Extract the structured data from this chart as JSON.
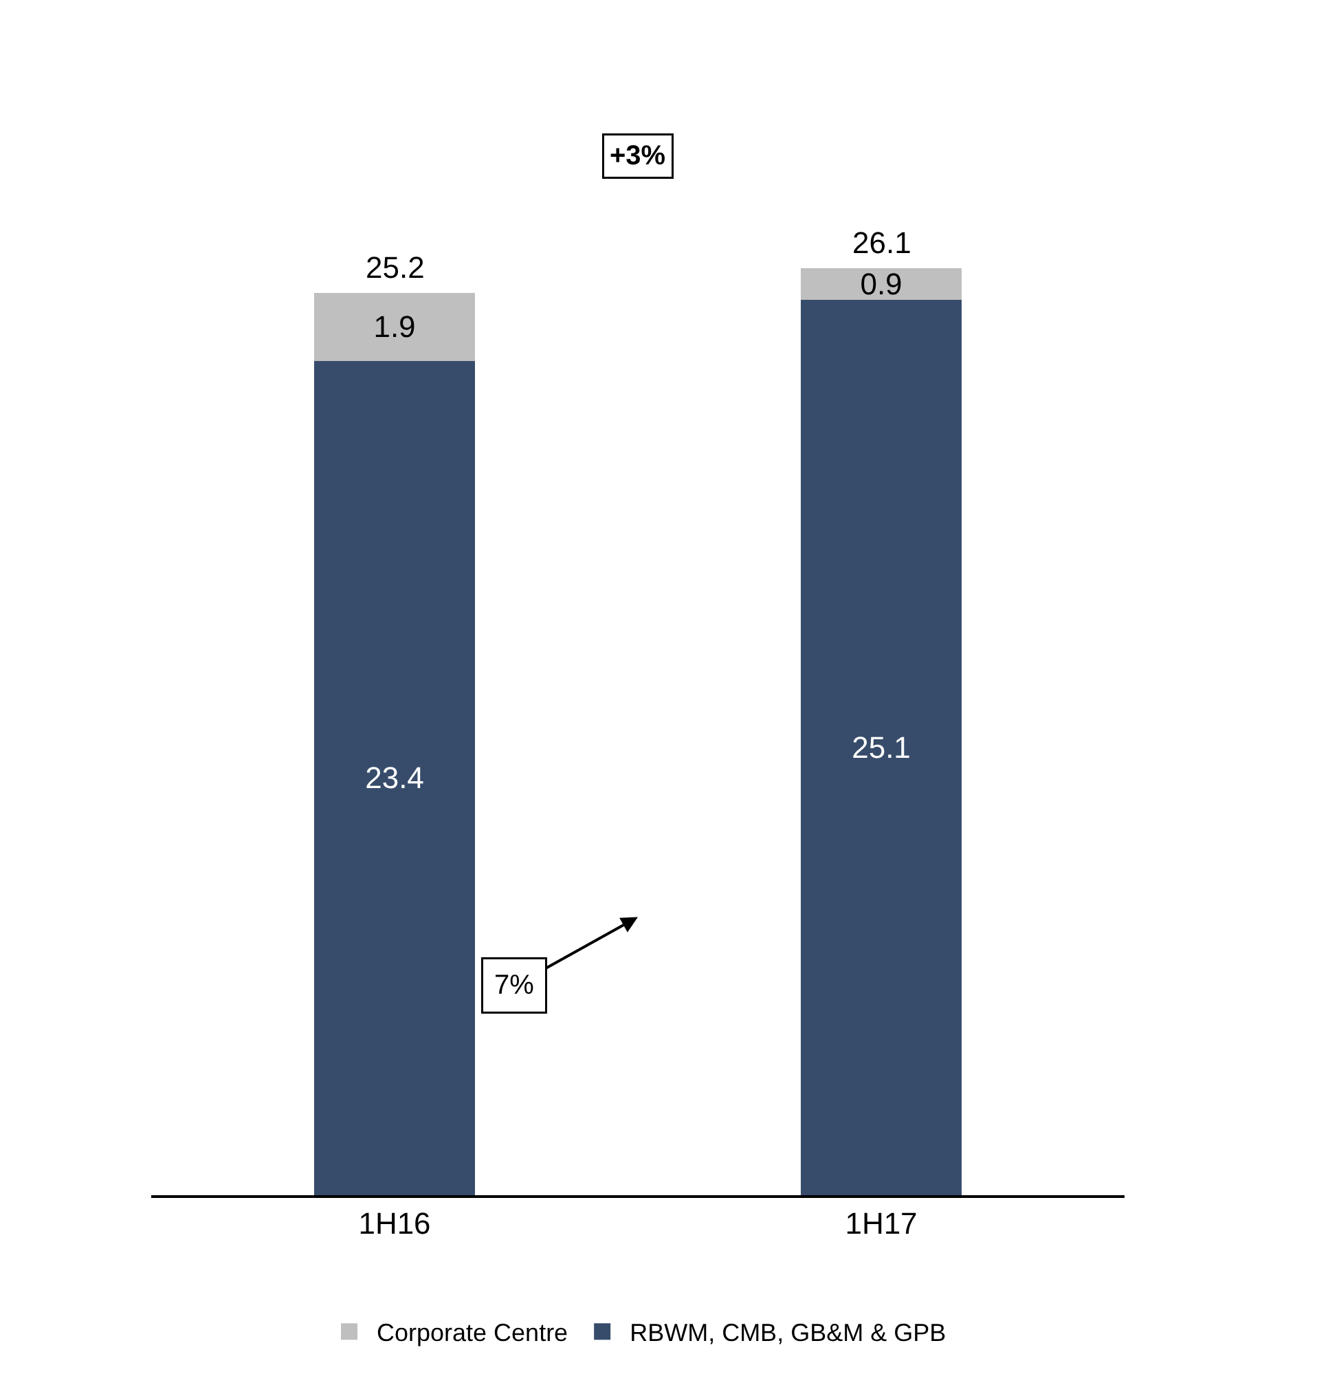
{
  "chart_data": {
    "type": "bar",
    "stacked": true,
    "data_labels": true,
    "legend": "bottom",
    "tick_labels": "x",
    "categories": [
      "1H16",
      "1H17"
    ],
    "series": [
      {
        "name": "RBWM, CMB, GB&M & GPB",
        "color": "#374c6b",
        "values": [
          23.4,
          25.1
        ]
      },
      {
        "name": "Corporate Centre",
        "color": "#bfbfbf",
        "values": [
          1.9,
          0.9
        ]
      }
    ],
    "totals": [
      "25.2",
      "26.1"
    ],
    "annotations": [
      "+3%",
      "7%"
    ]
  }
}
